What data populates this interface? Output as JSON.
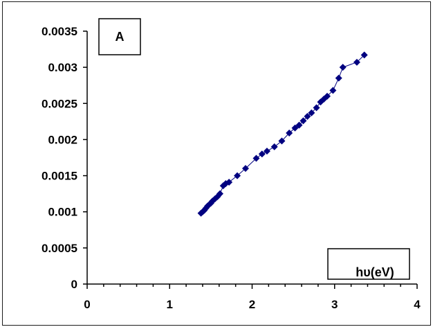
{
  "chart_data": {
    "type": "scatter",
    "title": "",
    "xlabel": "hυ(eV)",
    "ylabel": "",
    "panel_label": "A",
    "xlim": [
      0,
      4
    ],
    "ylim": [
      0,
      0.0035
    ],
    "x_ticks": [
      "0",
      "1",
      "2",
      "3",
      "4"
    ],
    "y_ticks": [
      "0",
      "0.0005",
      "0.001",
      "0.0015",
      "0.002",
      "0.0025",
      "0.003",
      "0.0035"
    ],
    "grid": false,
    "legend": "none",
    "marker_color": "#000080",
    "series": [
      {
        "x": [
          1.38,
          1.4,
          1.42,
          1.44,
          1.46,
          1.48,
          1.5,
          1.52,
          1.55,
          1.58,
          1.61,
          1.65,
          1.68,
          1.72,
          1.82,
          1.92,
          2.05,
          2.12,
          2.18,
          2.27,
          2.36,
          2.45,
          2.52,
          2.57,
          2.62,
          2.67,
          2.72,
          2.78,
          2.83,
          2.87,
          2.91,
          2.98,
          3.05,
          3.1,
          3.27,
          3.36
        ],
        "y": [
          0.00098,
          0.001,
          0.00102,
          0.00105,
          0.00108,
          0.0011,
          0.00112,
          0.00115,
          0.00118,
          0.00121,
          0.00125,
          0.00136,
          0.00139,
          0.00141,
          0.0015,
          0.0016,
          0.00174,
          0.0018,
          0.00184,
          0.0019,
          0.00198,
          0.00209,
          0.00216,
          0.0022,
          0.00226,
          0.00232,
          0.00237,
          0.00244,
          0.00252,
          0.00256,
          0.0026,
          0.00268,
          0.00285,
          0.003,
          0.00307,
          0.00317
        ]
      }
    ]
  }
}
